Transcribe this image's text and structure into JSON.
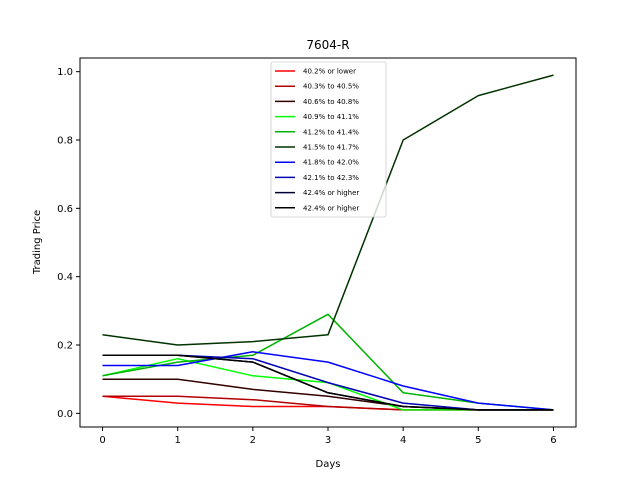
{
  "chart_data": {
    "type": "line",
    "title": "7604-R",
    "xlabel": "Days",
    "ylabel": "Trading Price",
    "x": [
      0,
      1,
      2,
      3,
      4,
      5,
      6
    ],
    "xlim": [
      -0.3,
      6.3
    ],
    "ylim": [
      -0.04,
      1.04
    ],
    "xticks": [
      "0",
      "1",
      "2",
      "3",
      "4",
      "5",
      "6"
    ],
    "yticks": [
      "0.0",
      "0.2",
      "0.4",
      "0.6",
      "0.8",
      "1.0"
    ],
    "legend_position": "top-center",
    "grid": false,
    "series": [
      {
        "name": "40.2% or lower",
        "color": "#ff0000",
        "values": [
          0.05,
          0.03,
          0.02,
          0.02,
          0.01,
          0.01,
          0.01
        ]
      },
      {
        "name": "40.3% to 40.5%",
        "color": "#b30000",
        "values": [
          0.05,
          0.05,
          0.04,
          0.02,
          0.01,
          0.01,
          0.01
        ]
      },
      {
        "name": "40.6% to 40.8%",
        "color": "#330000",
        "values": [
          0.1,
          0.1,
          0.07,
          0.05,
          0.02,
          0.01,
          0.01
        ]
      },
      {
        "name": "40.9% to 41.1%",
        "color": "#00ff00",
        "values": [
          0.11,
          0.16,
          0.11,
          0.09,
          0.01,
          0.01,
          0.01
        ]
      },
      {
        "name": "41.2% to 41.4%",
        "color": "#00b300",
        "values": [
          0.11,
          0.15,
          0.17,
          0.29,
          0.06,
          0.03,
          0.01
        ]
      },
      {
        "name": "41.5% to 41.7%",
        "color": "#003300",
        "values": [
          0.23,
          0.2,
          0.21,
          0.23,
          0.8,
          0.93,
          0.99
        ]
      },
      {
        "name": "41.8% to 42.0%",
        "color": "#0000ff",
        "values": [
          0.14,
          0.14,
          0.18,
          0.15,
          0.08,
          0.03,
          0.01
        ]
      },
      {
        "name": "42.1% to 42.3%",
        "color": "#0000b3",
        "values": [
          0.17,
          0.17,
          0.16,
          0.09,
          0.03,
          0.01,
          0.01
        ]
      },
      {
        "name": "42.4% or higher",
        "color": "#000033",
        "values": [
          0.17,
          0.17,
          0.15,
          0.06,
          0.02,
          0.01,
          0.01
        ]
      },
      {
        "name": "42.4% or higher",
        "color": "#000000",
        "values": [
          0.17,
          0.17,
          0.15,
          0.06,
          0.02,
          0.01,
          0.01
        ]
      }
    ]
  }
}
